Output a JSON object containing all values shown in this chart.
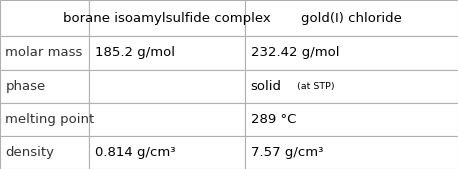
{
  "col_headers": [
    "",
    "borane isoamylsulfide complex",
    "gold(I) chloride"
  ],
  "rows": [
    [
      "molar mass",
      "185.2 g/mol",
      "232.42 g/mol"
    ],
    [
      "phase",
      "",
      ""
    ],
    [
      "melting point",
      "",
      "289 °C"
    ],
    [
      "density",
      "0.814 g/cm³",
      "7.57 g/cm³"
    ]
  ],
  "phase_main": "solid",
  "phase_sub": " (at STP)",
  "bg_color": "#ffffff",
  "border_color": "#b0b0b0",
  "text_color": "#000000",
  "label_color": "#333333",
  "header_fontsize": 9.5,
  "data_fontsize": 9.5,
  "phase_main_fontsize": 9.5,
  "phase_sub_fontsize": 6.8,
  "figw": 4.58,
  "figh": 1.69,
  "dpi": 100
}
